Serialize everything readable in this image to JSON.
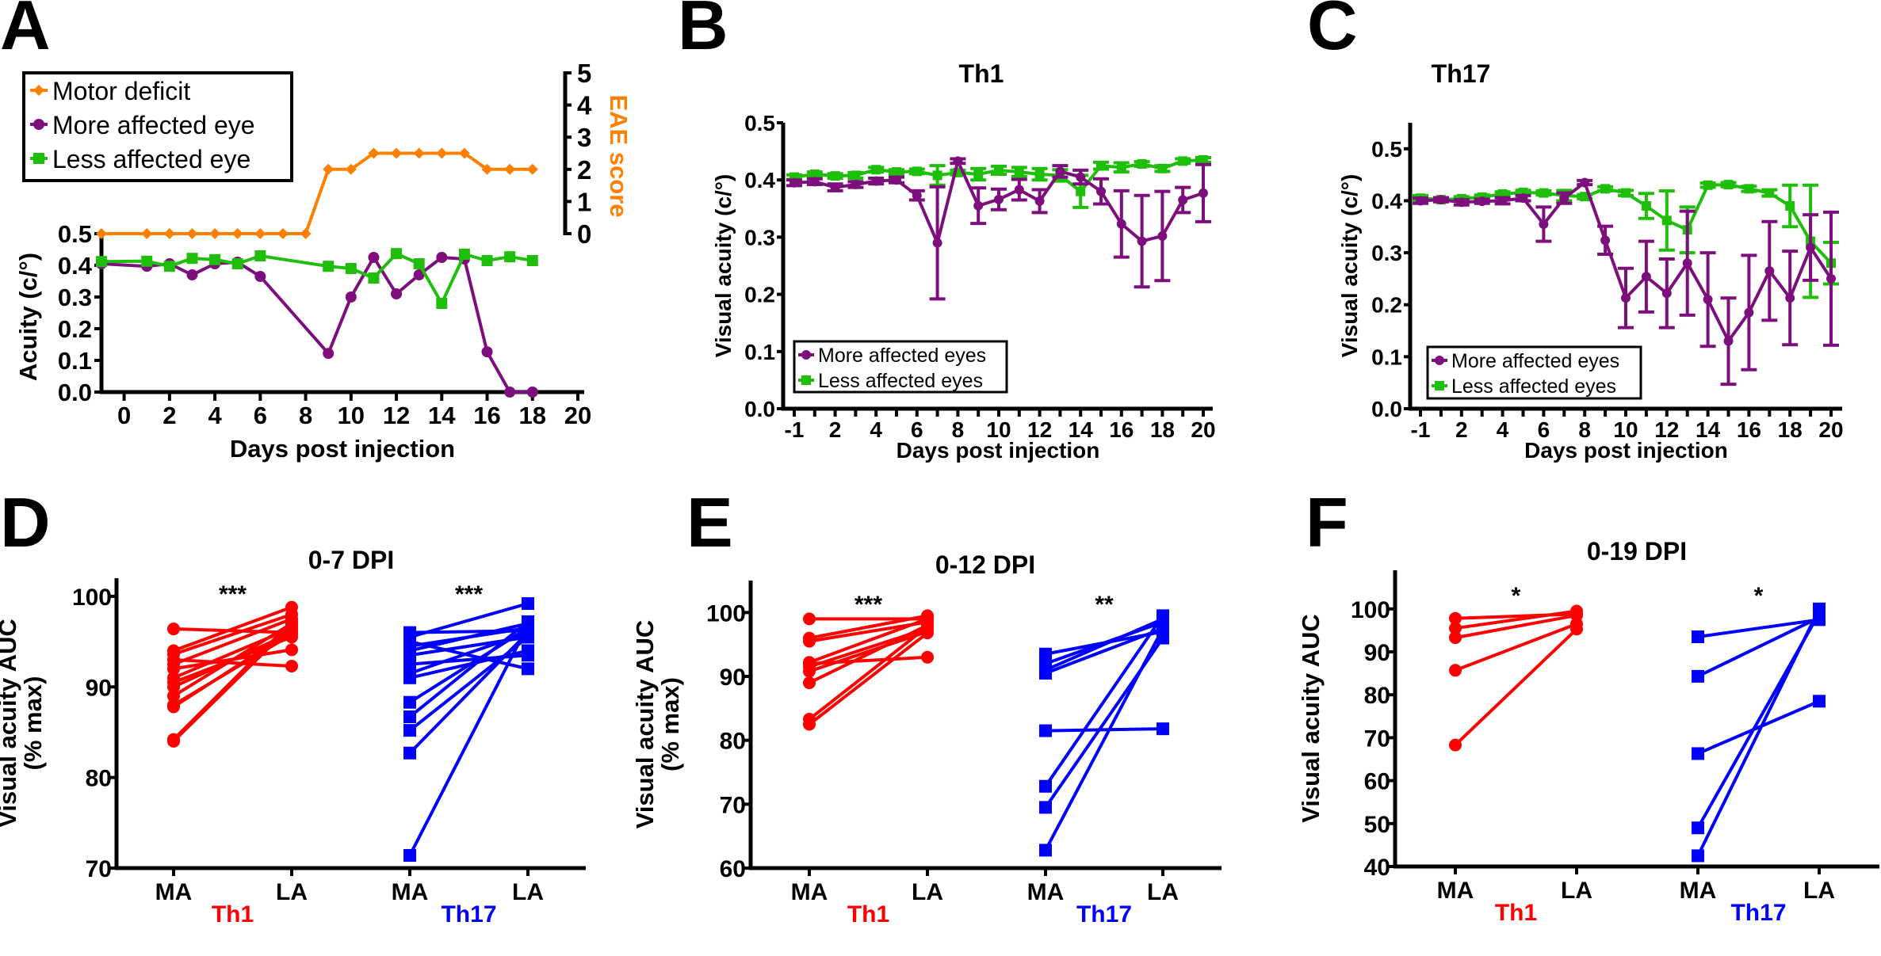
{
  "colors": {
    "motor": "#ff8000",
    "more_affected": "#7d0f7d",
    "less_affected": "#1ebe0a",
    "th1": "#ff0000",
    "th17": "#0000ff"
  },
  "chart_data": [
    {
      "panel": "A",
      "type": "line",
      "title": "",
      "xlabel": "Days post injection",
      "ylabel": [
        "Acuity (c/°)"
      ],
      "y2label": "EAE score",
      "xlim": [
        -1,
        20
      ],
      "ylim": [
        0,
        0.5
      ],
      "y2lim": [
        0,
        5
      ],
      "x_ticks": [
        "0",
        "2",
        "4",
        "6",
        "8",
        "10",
        "12",
        "14",
        "16",
        "18",
        "20"
      ],
      "y_ticks": [
        "0.0",
        "0.1",
        "0.2",
        "0.3",
        "0.4",
        "0.5"
      ],
      "y2_ticks": [
        "0",
        "1",
        "2",
        "3",
        "4",
        "5"
      ],
      "legend": "top-left",
      "series": [
        {
          "name": "Motor deficit",
          "axis": "right",
          "marker": "diamond",
          "color_key": "motor",
          "x": [
            -1,
            1,
            2,
            3,
            4,
            5,
            6,
            7,
            8,
            9,
            10,
            11,
            12,
            13,
            14,
            15,
            16,
            17,
            18
          ],
          "y": [
            0,
            0,
            0,
            0,
            0,
            0,
            0,
            0,
            0,
            2,
            2,
            2.5,
            2.5,
            2.5,
            2.5,
            2.5,
            2,
            2,
            2
          ]
        },
        {
          "name": "More affected eye",
          "axis": "left",
          "marker": "circle",
          "color_key": "more_affected",
          "x": [
            -1,
            1,
            2,
            3,
            4,
            5,
            6,
            9,
            10,
            11,
            12,
            13,
            14,
            15,
            16,
            17,
            18
          ],
          "y": [
            0.405,
            0.397,
            0.405,
            0.37,
            0.405,
            0.41,
            0.365,
            0.122,
            0.3,
            0.425,
            0.31,
            0.37,
            0.425,
            0.42,
            0.127,
            0,
            0
          ]
        },
        {
          "name": "Less affected eye",
          "axis": "left",
          "marker": "square",
          "color_key": "less_affected",
          "x": [
            -1,
            1,
            2,
            3,
            4,
            5,
            6,
            9,
            10,
            11,
            12,
            13,
            14,
            15,
            16,
            17,
            18
          ],
          "y": [
            0.412,
            0.413,
            0.397,
            0.422,
            0.418,
            0.405,
            0.43,
            0.397,
            0.39,
            0.36,
            0.437,
            0.405,
            0.28,
            0.435,
            0.415,
            0.427,
            0.415
          ]
        }
      ]
    },
    {
      "panel": "B",
      "type": "line",
      "title": "Th1",
      "xlabel": "Days post injection",
      "ylabel": [
        "Visual acuity (c/°)"
      ],
      "categories": [
        "-1",
        "1",
        "2",
        "3",
        "4",
        "5",
        "6",
        "7",
        "8",
        "9",
        "10",
        "11",
        "12",
        "13",
        "14",
        "15",
        "16",
        "17",
        "18",
        "19",
        "20"
      ],
      "x_ticks": [
        "-1",
        "2",
        "4",
        "6",
        "8",
        "10",
        "12",
        "14",
        "16",
        "18",
        "20"
      ],
      "ylim": [
        0,
        0.5
      ],
      "y_ticks": [
        "0.0",
        "0.1",
        "0.2",
        "0.3",
        "0.4",
        "0.5"
      ],
      "legend": "bottom-left",
      "series": [
        {
          "name": "More affected eyes",
          "marker": "circle",
          "color_key": "more_affected",
          "y": [
            0.395,
            0.397,
            0.387,
            0.392,
            0.398,
            0.4,
            0.373,
            0.29,
            0.433,
            0.355,
            0.366,
            0.383,
            0.363,
            0.415,
            0.405,
            0.38,
            0.323,
            0.293,
            0.302,
            0.365,
            0.377
          ],
          "error": [
            0.005,
            0.005,
            0.006,
            0.005,
            0.005,
            0.005,
            0.008,
            0.098,
            0.004,
            0.031,
            0.018,
            0.018,
            0.02,
            0.01,
            0.012,
            0.022,
            0.058,
            0.08,
            0.078,
            0.022,
            0.05
          ]
        },
        {
          "name": "Less affected eyes",
          "marker": "square",
          "color_key": "less_affected",
          "y": [
            0.405,
            0.41,
            0.407,
            0.408,
            0.418,
            0.414,
            0.415,
            0.408,
            0.413,
            0.41,
            0.417,
            0.414,
            0.41,
            0.408,
            0.38,
            0.425,
            0.422,
            0.428,
            0.42,
            0.433,
            0.435
          ],
          "error": [
            0.004,
            0.004,
            0.004,
            0.005,
            0.004,
            0.004,
            0.004,
            0.017,
            0.004,
            0.01,
            0.007,
            0.008,
            0.01,
            0.01,
            0.028,
            0.006,
            0.008,
            0.004,
            0.005,
            0.004,
            0.004
          ]
        }
      ]
    },
    {
      "panel": "C",
      "type": "line",
      "title": "Th17",
      "xlabel": "Days post injection",
      "ylabel": [
        "Visual acuity (c/°)"
      ],
      "categories": [
        "-1",
        "1",
        "2",
        "3",
        "4",
        "5",
        "6",
        "7",
        "8",
        "9",
        "10",
        "11",
        "12",
        "13",
        "14",
        "15",
        "16",
        "17",
        "18",
        "19",
        "20"
      ],
      "x_ticks": [
        "-1",
        "2",
        "4",
        "6",
        "8",
        "10",
        "12",
        "14",
        "16",
        "18",
        "20"
      ],
      "ylim": [
        0,
        0.55
      ],
      "y_ticks": [
        "0.0",
        "0.1",
        "0.2",
        "0.3",
        "0.4",
        "0.5"
      ],
      "legend": "bottom-left",
      "series": [
        {
          "name": "More affected eyes",
          "marker": "circle",
          "color_key": "more_affected",
          "y": [
            0.4,
            0.402,
            0.397,
            0.399,
            0.4,
            0.405,
            0.355,
            0.405,
            0.435,
            0.324,
            0.213,
            0.254,
            0.222,
            0.28,
            0.21,
            0.13,
            0.185,
            0.265,
            0.213,
            0.31,
            0.25
          ],
          "error": [
            0.005,
            0.004,
            0.005,
            0.004,
            0.006,
            0.005,
            0.033,
            0.01,
            0.004,
            0.027,
            0.057,
            0.068,
            0.066,
            0.1,
            0.09,
            0.083,
            0.11,
            0.095,
            0.09,
            0.063,
            0.128
          ]
        },
        {
          "name": "Less affected eyes",
          "marker": "square",
          "color_key": "less_affected",
          "y": [
            0.405,
            0.402,
            0.404,
            0.407,
            0.413,
            0.416,
            0.415,
            0.41,
            0.408,
            0.423,
            0.415,
            0.39,
            0.362,
            0.344,
            0.43,
            0.431,
            0.423,
            0.415,
            0.39,
            0.322,
            0.28
          ],
          "error": [
            0.005,
            0.004,
            0.004,
            0.004,
            0.004,
            0.004,
            0.004,
            0.01,
            0.004,
            0.004,
            0.005,
            0.024,
            0.057,
            0.044,
            0.004,
            0.004,
            0.005,
            0.006,
            0.04,
            0.108,
            0.04
          ]
        }
      ]
    },
    {
      "panel": "D",
      "type": "paired-scatter",
      "title": "0-7 DPI",
      "ylabel": [
        "Visual acuity AUC",
        "(% max)"
      ],
      "ylim": [
        70,
        102
      ],
      "y_ticks": [
        "70",
        "80",
        "90",
        "100"
      ],
      "categories": [
        "MA",
        "LA",
        "MA",
        "LA"
      ],
      "groups": [
        {
          "name": "Th1",
          "marker": "circle",
          "color_key": "th1",
          "significance": "***",
          "pairs": [
            [
              96.4,
              96.0
            ],
            [
              94.0,
              98.8
            ],
            [
              93.6,
              98.0
            ],
            [
              93.0,
              92.3
            ],
            [
              92.5,
              97.5
            ],
            [
              92.0,
              94.1
            ],
            [
              91.0,
              96.5
            ],
            [
              90.5,
              95.5
            ],
            [
              90.0,
              96.0
            ],
            [
              89.0,
              97.0
            ],
            [
              88.0,
              95.8
            ],
            [
              87.8,
              96.2
            ],
            [
              84.0,
              96.8
            ],
            [
              84.2,
              97.2
            ]
          ]
        },
        {
          "name": "Th17",
          "marker": "square",
          "color_key": "th17",
          "significance": "***",
          "pairs": [
            [
              96.0,
              96.2
            ],
            [
              95.5,
              99.2
            ],
            [
              95.0,
              92.0
            ],
            [
              94.5,
              96.5
            ],
            [
              94.0,
              97.0
            ],
            [
              93.5,
              95.5
            ],
            [
              92.5,
              93.5
            ],
            [
              91.5,
              96.0
            ],
            [
              91.0,
              94.0
            ],
            [
              88.3,
              96.5
            ],
            [
              86.7,
              97.2
            ],
            [
              85.2,
              95.5
            ],
            [
              82.7,
              96.0
            ],
            [
              71.4,
              96.8
            ]
          ]
        }
      ]
    },
    {
      "panel": "E",
      "type": "paired-scatter",
      "title": "0-12 DPI",
      "ylabel": [
        "Visual acuity AUC",
        "(% max)"
      ],
      "ylim": [
        60,
        105
      ],
      "y_ticks": [
        "60",
        "70",
        "80",
        "90",
        "100"
      ],
      "categories": [
        "MA",
        "LA",
        "MA",
        "LA"
      ],
      "groups": [
        {
          "name": "Th1",
          "marker": "circle",
          "color_key": "th1",
          "significance": "***",
          "pairs": [
            [
              99.0,
              99.0
            ],
            [
              96.0,
              99.5
            ],
            [
              95.5,
              98.5
            ],
            [
              92.0,
              93.0
            ],
            [
              92.2,
              99.0
            ],
            [
              91.5,
              97.5
            ],
            [
              90.8,
              97.0
            ],
            [
              89.0,
              98.0
            ],
            [
              83.3,
              97.8
            ],
            [
              82.5,
              96.8
            ]
          ]
        },
        {
          "name": "Th17",
          "marker": "square",
          "color_key": "th17",
          "significance": "**",
          "pairs": [
            [
              93.5,
              97.0
            ],
            [
              92.0,
              98.5
            ],
            [
              91.0,
              99.0
            ],
            [
              90.5,
              97.5
            ],
            [
              81.5,
              81.8
            ],
            [
              72.8,
              99.5
            ],
            [
              69.5,
              96.0
            ],
            [
              62.8,
              97.5
            ]
          ]
        }
      ]
    },
    {
      "panel": "F",
      "type": "paired-scatter",
      "title": "0-19 DPI",
      "ylabel": [
        "Visual acuity AUC"
      ],
      "ylim": [
        40,
        109
      ],
      "y_ticks": [
        "40",
        "50",
        "60",
        "70",
        "80",
        "90",
        "100"
      ],
      "categories": [
        "MA",
        "LA",
        "MA",
        "LA"
      ],
      "groups": [
        {
          "name": "Th1",
          "marker": "circle",
          "color_key": "th1",
          "significance": "*",
          "pairs": [
            [
              97.8,
              98.8
            ],
            [
              95.5,
              99.5
            ],
            [
              93.3,
              98.5
            ],
            [
              85.7,
              96.5
            ],
            [
              68.3,
              95.3
            ]
          ]
        },
        {
          "name": "Th17",
          "marker": "square",
          "color_key": "th17",
          "significance": "*",
          "pairs": [
            [
              93.5,
              97.5
            ],
            [
              84.3,
              98.0
            ],
            [
              66.3,
              78.5
            ],
            [
              49.0,
              99.0
            ],
            [
              42.5,
              100.0
            ]
          ]
        }
      ]
    }
  ]
}
